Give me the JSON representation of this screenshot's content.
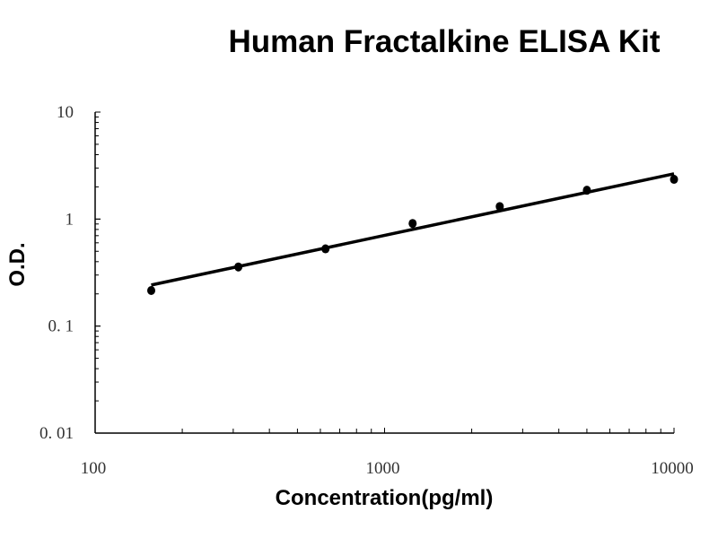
{
  "chart_data": {
    "type": "scatter",
    "title": "Human Fractalkine ELISA Kit",
    "xlabel": "Concentration(pg/ml)",
    "ylabel": "O.D.",
    "x_scale": "log",
    "y_scale": "log",
    "xlim": [
      100,
      10000
    ],
    "ylim": [
      0.01,
      10
    ],
    "x_tick_labels": [
      "100",
      "1000",
      "10000"
    ],
    "y_tick_labels": [
      "10",
      "1",
      "0. 1",
      "0. 01"
    ],
    "x_ticks": [
      100,
      1000,
      10000
    ],
    "y_ticks": [
      10,
      1,
      0.1,
      0.01
    ],
    "grid": false,
    "legend": "none",
    "color": "#000000",
    "series": [
      {
        "x": [
          156.25,
          312.5,
          625,
          1250,
          2500,
          5000,
          10000
        ],
        "y": [
          0.215,
          0.357,
          0.527,
          0.91,
          1.31,
          1.86,
          2.35
        ]
      }
    ],
    "fit_line": {
      "x": [
        156.25,
        10000
      ],
      "y": [
        0.242,
        2.65
      ]
    }
  }
}
